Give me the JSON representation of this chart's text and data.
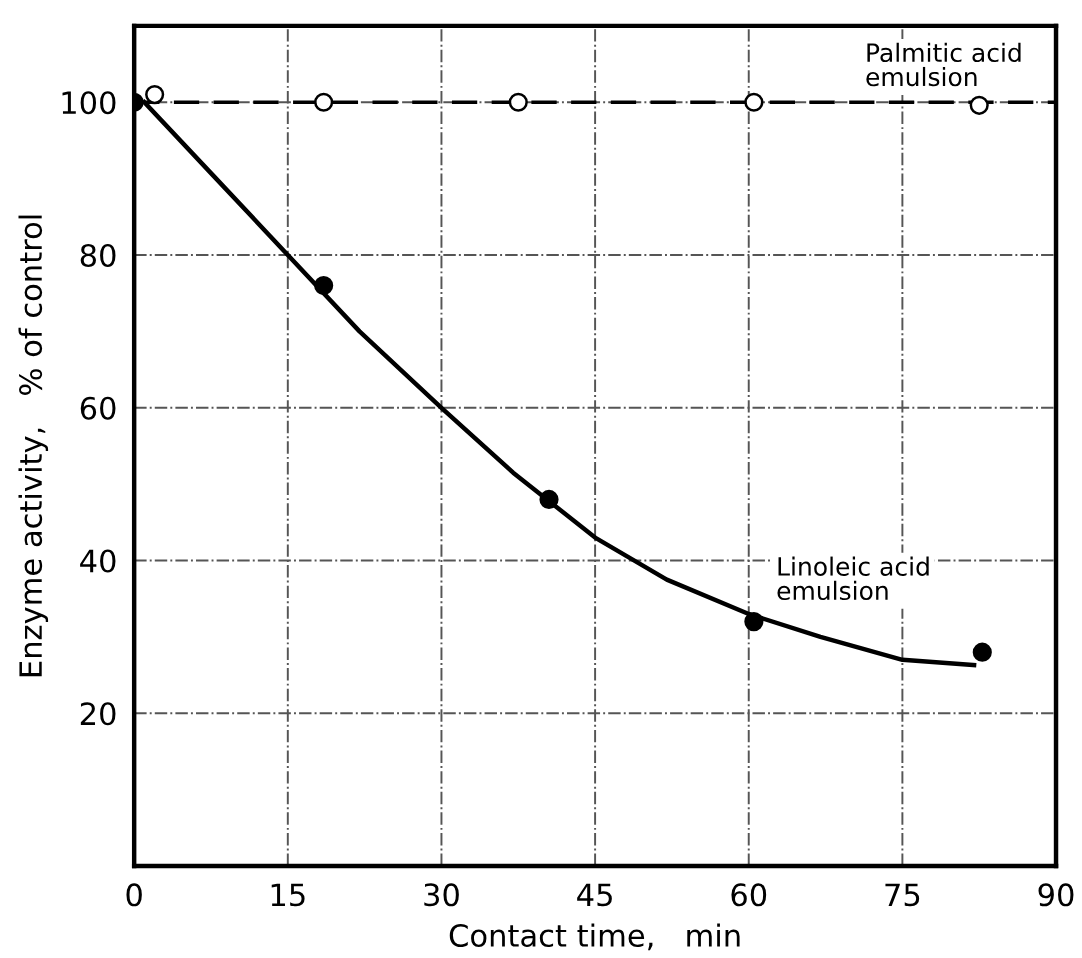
{
  "chart_data": {
    "type": "scatter",
    "xlabel": "Contact time,   min",
    "ylabel": "Enzyme activity,   % of control",
    "xlim": [
      0,
      90
    ],
    "xticks": [
      0,
      15,
      30,
      45,
      60,
      75,
      90
    ],
    "ylim": [
      0,
      110
    ],
    "yticks": [
      20,
      40,
      60,
      80,
      100
    ],
    "grid": true,
    "marker": "circle",
    "ref_lines": [
      {
        "axis": "y",
        "value": 100,
        "line_style": "dashed",
        "color": "#000000"
      }
    ],
    "series": [
      {
        "name": "Palmitic acid\nemulsion",
        "color": "#ffffff",
        "x": [
          2,
          18.5,
          37.5,
          60.5,
          82.5
        ],
        "values": [
          101,
          100,
          100,
          100,
          99.6
        ]
      },
      {
        "name": "Linoleic acid\nemulsion",
        "color": "#000000",
        "x": [
          0,
          18.5,
          40.5,
          60.5,
          82.8
        ],
        "values": [
          100,
          76,
          48,
          32,
          28
        ]
      },
      {
        "type": "line",
        "color": "#000000",
        "line_style": "solid",
        "marker": "none",
        "x": [
          1,
          8,
          15,
          22,
          30,
          37,
          45,
          52,
          60,
          67,
          75,
          82
        ],
        "values": [
          100,
          90,
          80,
          70,
          60,
          51.5,
          43,
          37.5,
          33,
          30,
          27,
          26.3
        ]
      }
    ]
  }
}
